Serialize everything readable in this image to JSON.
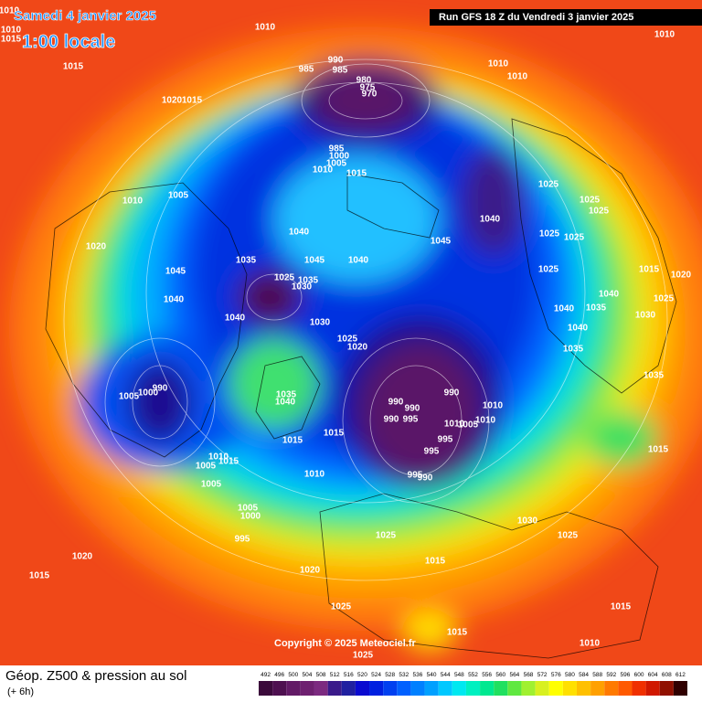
{
  "header": {
    "date": "Samedi 4 janvier 2025",
    "time": "1:00 locale",
    "run": "Run GFS 18 Z du Vendredi 3 janvier 2025"
  },
  "copyright": "Copyright © 2025 Meteociel.fr",
  "footer": {
    "title": "Géop. Z500 & pression au sol",
    "step": "(+ 6h)"
  },
  "isobar_labels": [
    1010,
    1010,
    1015,
    1015,
    1010,
    1020,
    1015,
    985,
    990,
    985,
    980,
    975,
    970,
    1010,
    1010,
    1010,
    985,
    1000,
    1005,
    1010,
    1015,
    1010,
    1005,
    1040,
    1025,
    1025,
    1025,
    1025,
    1025,
    1020,
    1040,
    1045,
    1035,
    1045,
    1040,
    1025,
    1015,
    1020,
    1045,
    1025,
    1035,
    1030,
    1040,
    1040,
    1030,
    1040,
    1035,
    1040,
    1025,
    1030,
    1025,
    1020,
    1040,
    1035,
    1035,
    990,
    1000,
    1005,
    1035,
    1040,
    990,
    990,
    990,
    1010,
    990,
    995,
    1010,
    1005,
    1010,
    1015,
    1015,
    995,
    995,
    1015,
    1010,
    1015,
    1005,
    1010,
    995,
    990,
    1005,
    1005,
    1000,
    1030,
    1025,
    1025,
    995,
    1020,
    1015,
    1015,
    1020,
    1025,
    1015,
    1015,
    1010,
    1025
  ],
  "color_scale": {
    "ticks": [
      492,
      496,
      500,
      504,
      508,
      512,
      516,
      520,
      524,
      528,
      532,
      536,
      540,
      544,
      548,
      552,
      556,
      560,
      564,
      568,
      572,
      576,
      580,
      584,
      588,
      592,
      596,
      600,
      604,
      608,
      612
    ],
    "colors": [
      "#3b0a3b",
      "#4e1050",
      "#621a66",
      "#6e2070",
      "#7c2a80",
      "#3a1a8a",
      "#2020a0",
      "#0a0ad0",
      "#0020e0",
      "#0040f0",
      "#0060ff",
      "#0080ff",
      "#00a0ff",
      "#00c8ff",
      "#00e8f0",
      "#00f0c0",
      "#00e890",
      "#20e060",
      "#60e840",
      "#a0f030",
      "#d8f020",
      "#ffff00",
      "#ffe000",
      "#ffc000",
      "#ffa000",
      "#ff7a00",
      "#ff5a00",
      "#f03000",
      "#d01800",
      "#901000",
      "#300000"
    ]
  }
}
